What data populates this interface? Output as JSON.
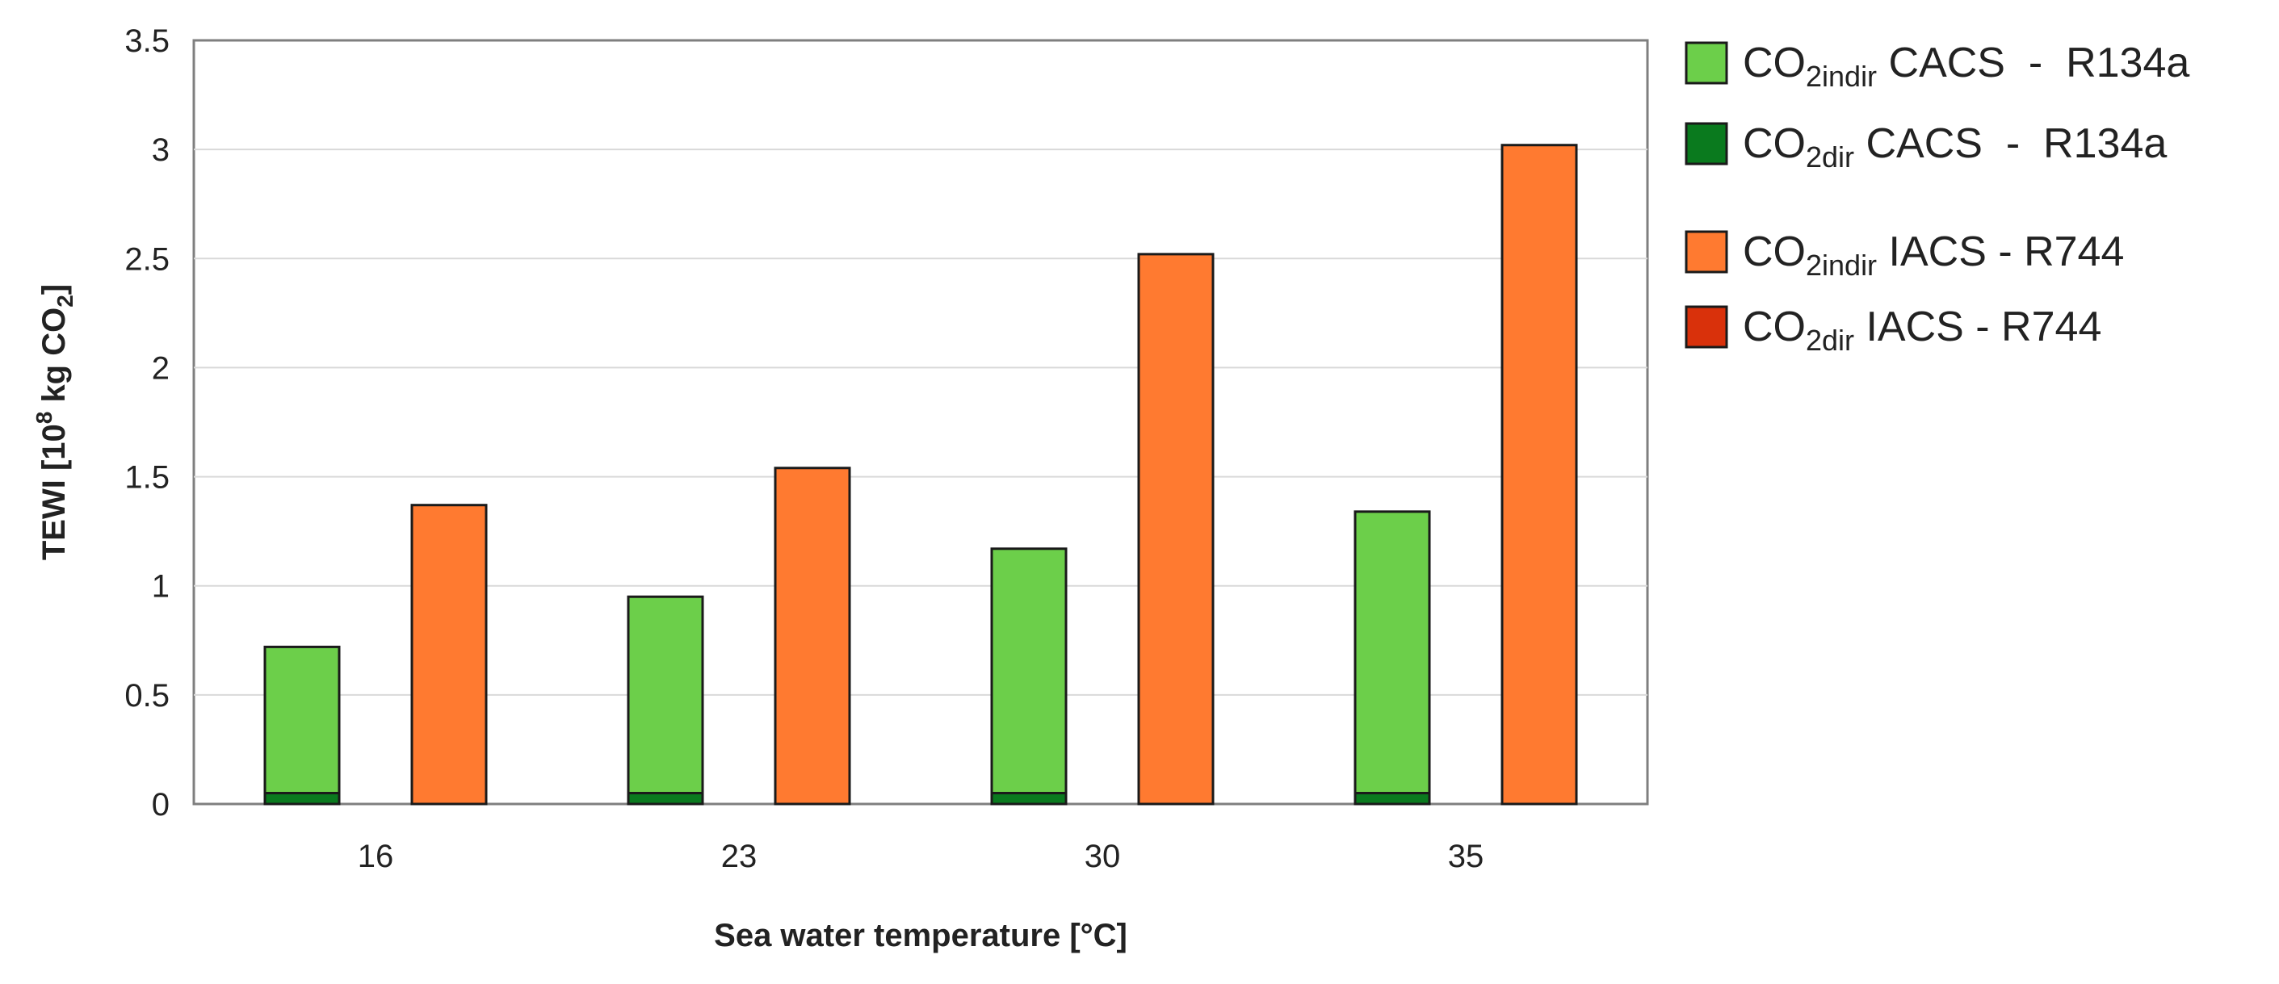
{
  "chart_data": {
    "type": "bar",
    "stacked": true,
    "categories": [
      "16",
      "23",
      "30",
      "35"
    ],
    "groups": [
      {
        "name": "CACS - R134a",
        "stack": [
          {
            "name": "CO2dir CACS - R134a",
            "color": "#0a7a1e",
            "values": [
              0.05,
              0.05,
              0.05,
              0.05
            ]
          },
          {
            "name": "CO2indir CACS - R134a",
            "color": "#6ccf4a",
            "values": [
              0.67,
              0.9,
              1.12,
              1.29
            ]
          }
        ]
      },
      {
        "name": "IACS - R744",
        "stack": [
          {
            "name": "CO2dir IACS - R744",
            "color": "#d9310b",
            "values": [
              0.0,
              0.0,
              0.0,
              0.0
            ]
          },
          {
            "name": "CO2indir IACS - R744",
            "color": "#ff7a30",
            "values": [
              1.37,
              1.54,
              2.52,
              3.02
            ]
          }
        ]
      }
    ],
    "xlabel": "Sea water temperature [°C]",
    "ylabel": {
      "prefix": "TEWI [10",
      "sup": "8",
      "middle": " kg CO",
      "sub": "2",
      "suffix": "]"
    },
    "ylim": [
      0,
      3.5
    ],
    "yticks": [
      "0",
      "0.5",
      "1",
      "1.5",
      "2",
      "2.5",
      "3",
      "3.5"
    ],
    "grid": true,
    "legend_position": "right",
    "legend": [
      {
        "base": "CO",
        "sub": "2indir",
        "rest": " CACS  -  R134a",
        "color": "#6ccf4a"
      },
      {
        "base": "CO",
        "sub": "2dir",
        "rest": " CACS  -  R134a",
        "color": "#0a7a1e"
      },
      {
        "base": "CO",
        "sub": "2indir",
        "rest": " IACS - R744",
        "color": "#ff7a30"
      },
      {
        "base": "CO",
        "sub": "2dir",
        "rest": " IACS - R744",
        "color": "#d9310b"
      }
    ]
  }
}
